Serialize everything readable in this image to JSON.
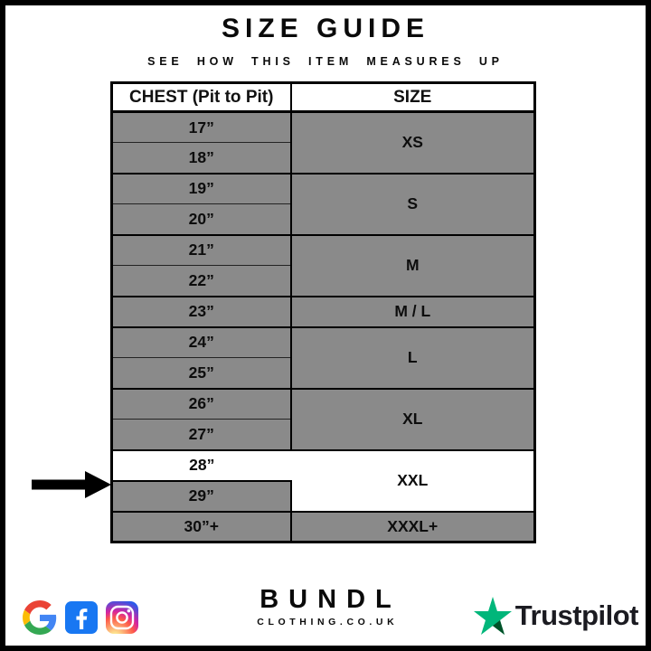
{
  "page": {
    "title": "SIZE GUIDE",
    "subtitle": "SEE HOW THIS ITEM MEASURES UP"
  },
  "table": {
    "columns": [
      "CHEST (Pit to Pit)",
      "SIZE"
    ],
    "groups": [
      {
        "size": "XS",
        "chest": [
          "17”",
          "18”"
        ],
        "row_bg": [
          "gray",
          "gray"
        ],
        "size_bg": "gray"
      },
      {
        "size": "S",
        "chest": [
          "19”",
          "20”"
        ],
        "row_bg": [
          "gray",
          "gray"
        ],
        "size_bg": "gray"
      },
      {
        "size": "M",
        "chest": [
          "21”",
          "22”"
        ],
        "row_bg": [
          "gray",
          "gray"
        ],
        "size_bg": "gray"
      },
      {
        "size": "M / L",
        "chest": [
          "23”"
        ],
        "row_bg": [
          "gray"
        ],
        "size_bg": "gray"
      },
      {
        "size": "L",
        "chest": [
          "24”",
          "25”"
        ],
        "row_bg": [
          "gray",
          "gray"
        ],
        "size_bg": "gray"
      },
      {
        "size": "XL",
        "chest": [
          "26”",
          "27”"
        ],
        "row_bg": [
          "gray",
          "gray"
        ],
        "size_bg": "gray"
      },
      {
        "size": "XXL",
        "chest": [
          "28”",
          "29”"
        ],
        "row_bg": [
          "white",
          "gray"
        ],
        "size_bg": "white"
      },
      {
        "size": "XXXL+",
        "chest": [
          "30”+"
        ],
        "row_bg": [
          "gray"
        ],
        "size_bg": "gray"
      }
    ],
    "pointer_target": "28”"
  },
  "chart_data": {
    "type": "table",
    "title": "SIZE GUIDE",
    "subtitle": "SEE HOW THIS ITEM MEASURES UP",
    "columns": [
      "CHEST (Pit to Pit)",
      "SIZE"
    ],
    "rows": [
      [
        "17”",
        "XS"
      ],
      [
        "18”",
        "XS"
      ],
      [
        "19”",
        "S"
      ],
      [
        "20”",
        "S"
      ],
      [
        "21”",
        "M"
      ],
      [
        "22”",
        "M"
      ],
      [
        "23”",
        "M / L"
      ],
      [
        "24”",
        "L"
      ],
      [
        "25”",
        "L"
      ],
      [
        "26”",
        "XL"
      ],
      [
        "27”",
        "XL"
      ],
      [
        "28”",
        "XXL"
      ],
      [
        "29”",
        "XXL"
      ],
      [
        "30”+",
        "XXXL+"
      ]
    ],
    "highlighted_row": "28”",
    "layout_hints": {
      "merged_size_cells": true,
      "pointer_arrow_at": "28”"
    }
  },
  "footer": {
    "brand": {
      "name": "BUNDL",
      "domain": "CLOTHING.CO.UK"
    },
    "trustpilot_label": "Trustpilot",
    "icons": [
      "google-icon",
      "facebook-icon",
      "instagram-icon",
      "trustpilot-star-icon"
    ]
  },
  "colors": {
    "cell_gray": "#8a8a8a",
    "highlight_white": "#ffffff",
    "border_black": "#000000",
    "facebook_blue": "#1877f2",
    "trustpilot_green": "#00b67a",
    "trustpilot_dark_green": "#005128"
  }
}
